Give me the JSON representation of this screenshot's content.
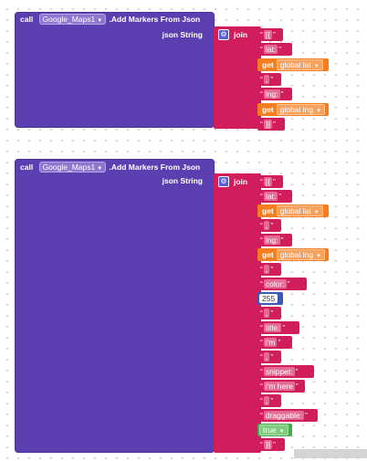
{
  "blocks": [
    {
      "call_label": "call",
      "component": "Google_Maps1",
      "method": ".Add Markers From Json",
      "param_label": "json String",
      "join_label": "join",
      "items": [
        {
          "kind": "text",
          "text": "[{"
        },
        {
          "kind": "text",
          "text": "lat:"
        },
        {
          "kind": "get",
          "label": "get",
          "var": "global lat"
        },
        {
          "kind": "text",
          "text": ","
        },
        {
          "kind": "text",
          "text": "lng:"
        },
        {
          "kind": "get",
          "label": "get",
          "var": "global lng"
        },
        {
          "kind": "text",
          "text": "}]"
        }
      ]
    },
    {
      "call_label": "call",
      "component": "Google_Maps1",
      "method": ".Add Markers From Json",
      "param_label": "json String",
      "join_label": "join",
      "items": [
        {
          "kind": "text",
          "text": "[{"
        },
        {
          "kind": "text",
          "text": "lat:"
        },
        {
          "kind": "get",
          "label": "get",
          "var": "global lat"
        },
        {
          "kind": "text",
          "text": ","
        },
        {
          "kind": "text",
          "text": "lng:"
        },
        {
          "kind": "get",
          "label": "get",
          "var": "global lng"
        },
        {
          "kind": "text",
          "text": ","
        },
        {
          "kind": "text",
          "text": "color:"
        },
        {
          "kind": "number",
          "text": "255"
        },
        {
          "kind": "text",
          "text": ","
        },
        {
          "kind": "text",
          "text": "title:"
        },
        {
          "kind": "text",
          "text": "i'm"
        },
        {
          "kind": "text",
          "text": ","
        },
        {
          "kind": "text",
          "text": "snippet:"
        },
        {
          "kind": "text",
          "text": "i'm here"
        },
        {
          "kind": "text",
          "text": ","
        },
        {
          "kind": "text",
          "text": "draggable:"
        },
        {
          "kind": "bool",
          "text": "true"
        },
        {
          "kind": "text",
          "text": "}]"
        }
      ]
    }
  ],
  "colors": {
    "procedure": "#5b3fb0",
    "text": "#d11d5b",
    "variable": "#f57c1f",
    "math": "#3b59b5",
    "logic": "#4aa84e"
  }
}
